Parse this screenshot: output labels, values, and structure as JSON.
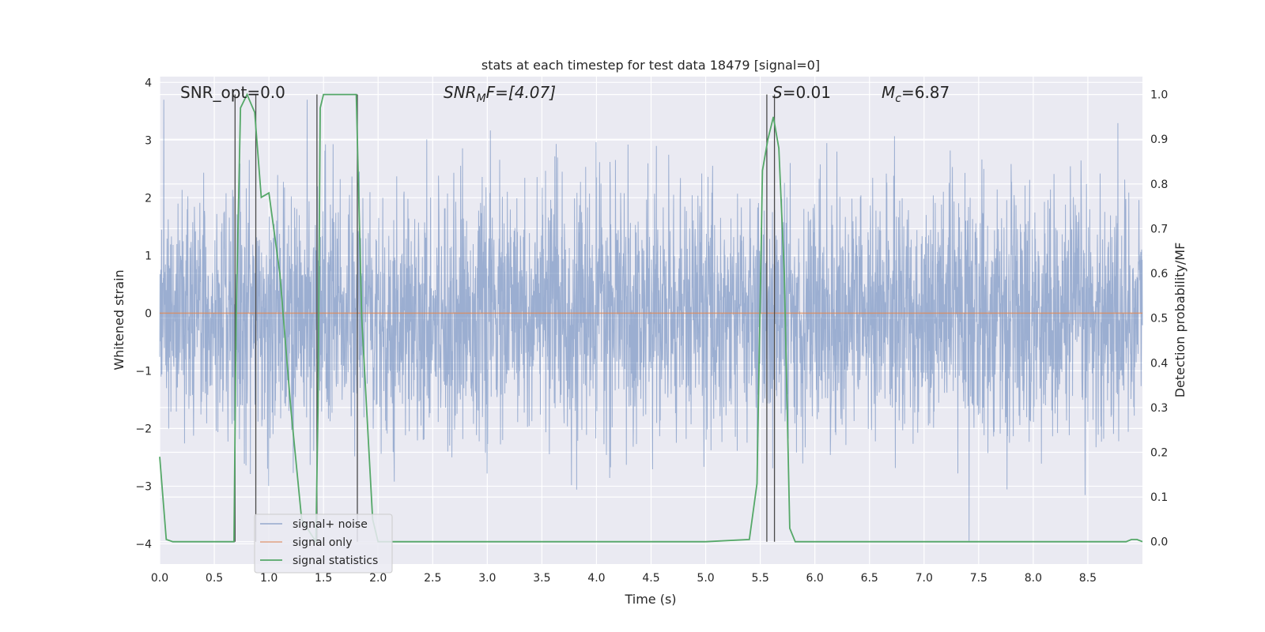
{
  "chart_data": {
    "type": "line",
    "title": "stats at each timestep for test data 18479 [signal=0]",
    "xlabel": "Time (s)",
    "ylabel_left": "Whitened strain",
    "ylabel_right": "Detection probability/MF",
    "xlim": [
      0.0,
      9.0
    ],
    "ylim_left": [
      -4.35,
      4.1
    ],
    "ylim_right": [
      -0.05,
      1.04
    ],
    "x_ticks": [
      "0.0",
      "0.5",
      "1.0",
      "1.5",
      "2.0",
      "2.5",
      "3.0",
      "3.5",
      "4.0",
      "4.5",
      "5.0",
      "5.5",
      "6.0",
      "6.5",
      "7.0",
      "7.5",
      "8.0",
      "8.5"
    ],
    "x_tick_values": [
      0.0,
      0.5,
      1.0,
      1.5,
      2.0,
      2.5,
      3.0,
      3.5,
      4.0,
      4.5,
      5.0,
      5.5,
      6.0,
      6.5,
      7.0,
      7.5,
      8.0,
      8.5
    ],
    "y_left_ticks": [
      "4",
      "3",
      "2",
      "1",
      "0",
      "−1",
      "−2",
      "−3",
      "−4"
    ],
    "y_left_tick_values": [
      4,
      3,
      2,
      1,
      0,
      -1,
      -2,
      -3,
      -4
    ],
    "y_right_ticks": [
      "1.0",
      "0.9",
      "0.8",
      "0.7",
      "0.6",
      "0.5",
      "0.4",
      "0.3",
      "0.2",
      "0.1",
      "0.0"
    ],
    "y_right_tick_values": [
      1.0,
      0.9,
      0.8,
      0.7,
      0.6,
      0.5,
      0.4,
      0.3,
      0.2,
      0.1,
      0.0
    ],
    "grid": true,
    "legend_position": "lower-left",
    "annotations": {
      "snr_opt": "SNR_opt=0.0",
      "snr_mf_main": "SNR",
      "snr_mf_sub": "M",
      "snr_mf_rest": "F=[4.07]",
      "s_main": "S",
      "s_rest": "=0.01",
      "mc_main": "M",
      "mc_sub": "c",
      "mc_rest": "=6.87"
    },
    "series": [
      {
        "name": "signal+ noise",
        "color": "#4c72b0",
        "axis": "left",
        "amplitude_range": [
          -3.95,
          3.7
        ]
      },
      {
        "name": "signal only",
        "color": "#dd8452",
        "axis": "left",
        "y": 0.0
      },
      {
        "name": "signal statistics",
        "color": "#55a868",
        "axis": "right",
        "x": [
          0.0,
          0.06,
          0.12,
          0.25,
          0.5,
          0.68,
          0.7,
          0.74,
          0.8,
          0.87,
          0.93,
          1.0,
          1.1,
          1.2,
          1.3,
          1.43,
          1.45,
          1.47,
          1.5,
          1.55,
          1.8,
          1.85,
          1.95,
          2.0,
          2.5,
          3.0,
          4.0,
          5.0,
          5.4,
          5.47,
          5.52,
          5.57,
          5.62,
          5.67,
          5.72,
          5.77,
          5.82,
          6.5,
          7.5,
          8.5,
          8.85,
          8.9,
          8.95,
          9.0
        ],
        "y": [
          0.19,
          0.005,
          0.0,
          0.0,
          0.0,
          0.0,
          0.5,
          0.97,
          1.0,
          0.96,
          0.77,
          0.78,
          0.6,
          0.3,
          0.05,
          0.0,
          0.3,
          0.97,
          1.0,
          1.0,
          1.0,
          0.5,
          0.05,
          0.0,
          0.0,
          0.0,
          0.0,
          0.0,
          0.005,
          0.13,
          0.83,
          0.9,
          0.95,
          0.88,
          0.6,
          0.03,
          0.0,
          0.0,
          0.0,
          0.0,
          0.0,
          0.005,
          0.005,
          0.0
        ]
      }
    ],
    "vertical_markers": [
      0.69,
      0.88,
      1.44,
      1.81,
      5.56,
      5.63
    ]
  }
}
